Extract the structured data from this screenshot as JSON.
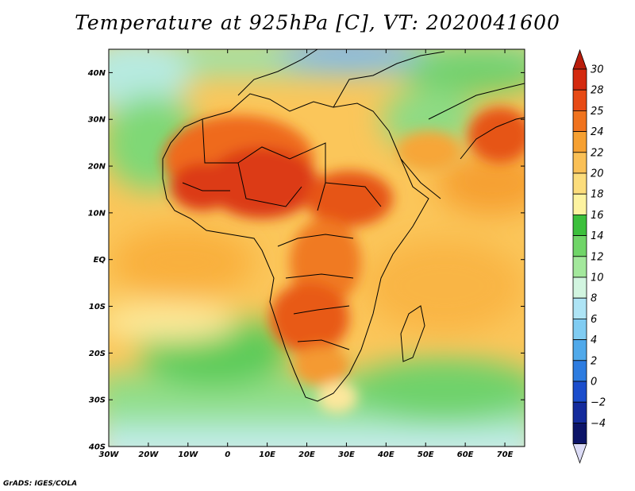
{
  "title": "Temperature at 925hPa [C], VT: 2020041600",
  "credit": "GrADS: IGES/COLA",
  "map": {
    "lat_ticks": [
      "40N",
      "30N",
      "20N",
      "10N",
      "EQ",
      "10S",
      "20S",
      "30S",
      "40S"
    ],
    "lon_ticks": [
      "30W",
      "20W",
      "10W",
      "0",
      "10E",
      "20E",
      "30E",
      "40E",
      "50E",
      "60E",
      "70E"
    ],
    "lat_values": [
      40,
      30,
      20,
      10,
      0,
      -10,
      -20,
      -30,
      -40
    ],
    "lon_values": [
      -30,
      -20,
      -10,
      0,
      10,
      20,
      30,
      40,
      50,
      60,
      70
    ],
    "extent": {
      "lon_min": -30,
      "lon_max": 75,
      "lat_min": -40,
      "lat_max": 45
    }
  },
  "colorbar": {
    "labels": [
      "30",
      "28",
      "25",
      "24",
      "22",
      "20",
      "18",
      "16",
      "14",
      "12",
      "10",
      "8",
      "6",
      "4",
      "2",
      "0",
      "−2",
      "−4"
    ],
    "colors": [
      "#d42a0f",
      "#e74a14",
      "#f0731e",
      "#f6a031",
      "#fac056",
      "#fcdd7c",
      "#fdf3a0",
      "#3cc03c",
      "#70d568",
      "#a3e89c",
      "#d2f5e0",
      "#aee4f5",
      "#80ccf2",
      "#50a9ea",
      "#2d7ce0",
      "#1b4dcc",
      "#142b9c",
      "#0c1468"
    ],
    "top_arrow_color": "#b91d0c",
    "bottom_arrow_color": "#dcdcf6"
  }
}
